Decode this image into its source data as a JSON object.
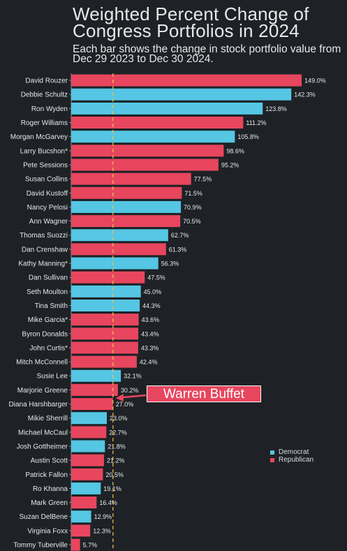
{
  "chart_data": {
    "type": "bar",
    "orientation": "horizontal",
    "title": "Weighted Percent Change of Congress Portfolios in 2024",
    "subtitle": "Each bar shows the change in stock portfolio value from Dec 29 2023 to Dec 30 2024.",
    "xlim": [
      0,
      158
    ],
    "reference_line": {
      "value": 27.0,
      "label": "Warren Buffet"
    },
    "legend": {
      "position": "right",
      "items": [
        {
          "name": "Democrat",
          "party": "D",
          "color": "#55c6e3"
        },
        {
          "name": "Republican",
          "party": "R",
          "color": "#e8465e"
        }
      ]
    },
    "bars": [
      {
        "name": "David Rouzer",
        "value": 149.0,
        "label": "149.0%",
        "party": "R"
      },
      {
        "name": "Debbie Schultz",
        "value": 142.3,
        "label": "142.3%",
        "party": "D"
      },
      {
        "name": "Ron Wyden",
        "value": 123.8,
        "label": "123.8%",
        "party": "D"
      },
      {
        "name": "Roger Williams",
        "value": 111.2,
        "label": "111.2%",
        "party": "R"
      },
      {
        "name": "Morgan McGarvey",
        "value": 105.8,
        "label": "105.8%",
        "party": "D"
      },
      {
        "name": "Larry Bucshon*",
        "value": 98.6,
        "label": "98.6%",
        "party": "R"
      },
      {
        "name": "Pete Sessions",
        "value": 95.2,
        "label": "95.2%",
        "party": "R"
      },
      {
        "name": "Susan Collins",
        "value": 77.5,
        "label": "77.5%",
        "party": "R"
      },
      {
        "name": "David Kustoff",
        "value": 71.5,
        "label": "71.5%",
        "party": "R"
      },
      {
        "name": "Nancy Pelosi",
        "value": 70.9,
        "label": "70.9%",
        "party": "D"
      },
      {
        "name": "Ann Wagner",
        "value": 70.5,
        "label": "70.5%",
        "party": "R"
      },
      {
        "name": "Thomas Suozzi",
        "value": 62.7,
        "label": "62.7%",
        "party": "D"
      },
      {
        "name": "Dan Crenshaw",
        "value": 61.3,
        "label": "61.3%",
        "party": "R"
      },
      {
        "name": "Kathy Manning*",
        "value": 56.3,
        "label": "56.3%",
        "party": "D"
      },
      {
        "name": "Dan Sullivan",
        "value": 47.5,
        "label": "47.5%",
        "party": "R"
      },
      {
        "name": "Seth Moulton",
        "value": 45.0,
        "label": "45.0%",
        "party": "D"
      },
      {
        "name": "Tina Smith",
        "value": 44.3,
        "label": "44.3%",
        "party": "D"
      },
      {
        "name": "Mike Garcia*",
        "value": 43.6,
        "label": "43.6%",
        "party": "R"
      },
      {
        "name": "Byron Donalds",
        "value": 43.4,
        "label": "43.4%",
        "party": "R"
      },
      {
        "name": "John Curtis*",
        "value": 43.3,
        "label": "43.3%",
        "party": "R"
      },
      {
        "name": "Mitch McConnell",
        "value": 42.4,
        "label": "42.4%",
        "party": "R"
      },
      {
        "name": "Susie Lee",
        "value": 32.1,
        "label": "32.1%",
        "party": "D"
      },
      {
        "name": "Marjorie Greene",
        "value": 30.2,
        "label": "30.2%",
        "party": "R"
      },
      {
        "name": "Diana Harshbarger",
        "value": 27.0,
        "label": "27.0%",
        "party": "R"
      },
      {
        "name": "Mikie Sherrill",
        "value": 23.0,
        "label": "23.0%",
        "party": "D"
      },
      {
        "name": "Michael McCaul",
        "value": 22.7,
        "label": "22.7%",
        "party": "R"
      },
      {
        "name": "Josh Gottheimer",
        "value": 21.8,
        "label": "21.8%",
        "party": "D"
      },
      {
        "name": "Austin Scott",
        "value": 21.2,
        "label": "21.2%",
        "party": "R"
      },
      {
        "name": "Patrick Fallon",
        "value": 20.5,
        "label": "20.5%",
        "party": "R"
      },
      {
        "name": "Ro Khanna",
        "value": 19.1,
        "label": "19.1%",
        "party": "D"
      },
      {
        "name": "Mark Green",
        "value": 16.4,
        "label": "16.4%",
        "party": "R"
      },
      {
        "name": "Suzan DelBene",
        "value": 12.9,
        "label": "12.9%",
        "party": "D"
      },
      {
        "name": "Virginia Foxx",
        "value": 12.3,
        "label": "12.3%",
        "party": "R"
      },
      {
        "name": "Tommy Tuberville",
        "value": 5.7,
        "label": "5.7%",
        "party": "R"
      }
    ]
  },
  "colors": {
    "background": "#1e2226",
    "democrat": "#55c6e3",
    "republican": "#e8465e",
    "reference_line": "#f2c14e",
    "text": "#e6e8ea"
  }
}
